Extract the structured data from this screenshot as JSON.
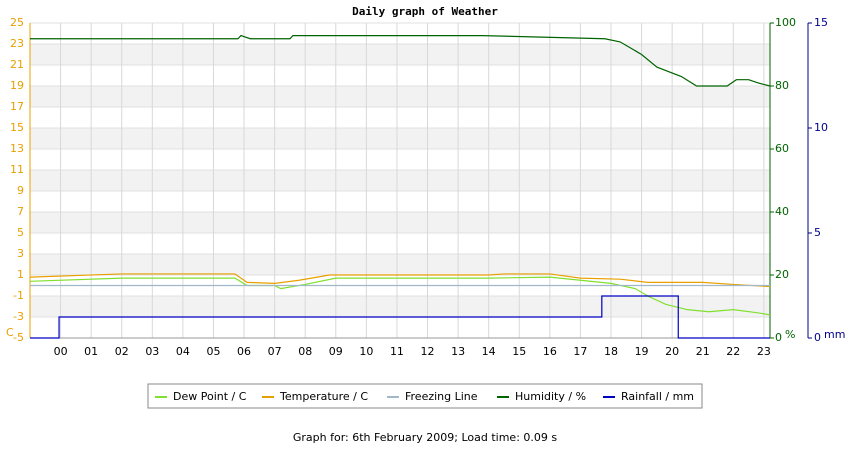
{
  "chart_data": {
    "type": "line",
    "title": "Daily graph of Weather",
    "footer": "Graph for: 6th February 2009; Load time: 0.09 s",
    "ylabel": "C",
    "y2label": "%",
    "y3label": "mm",
    "xlim": [
      -1.0,
      23.2
    ],
    "xticks": [
      {
        "value": 0,
        "label": "00"
      },
      {
        "value": 1,
        "label": "01"
      },
      {
        "value": 2,
        "label": "02"
      },
      {
        "value": 3,
        "label": "03"
      },
      {
        "value": 4,
        "label": "04"
      },
      {
        "value": 5,
        "label": "05"
      },
      {
        "value": 6,
        "label": "06"
      },
      {
        "value": 7,
        "label": "07"
      },
      {
        "value": 8,
        "label": "08"
      },
      {
        "value": 9,
        "label": "09"
      },
      {
        "value": 10,
        "label": "10"
      },
      {
        "value": 11,
        "label": "11"
      },
      {
        "value": 12,
        "label": "12"
      },
      {
        "value": 13,
        "label": "13"
      },
      {
        "value": 14,
        "label": "14"
      },
      {
        "value": 15,
        "label": "15"
      },
      {
        "value": 16,
        "label": "16"
      },
      {
        "value": 17,
        "label": "17"
      },
      {
        "value": 18,
        "label": "18"
      },
      {
        "value": 19,
        "label": "19"
      },
      {
        "value": 20,
        "label": "20"
      },
      {
        "value": 21,
        "label": "21"
      },
      {
        "value": 22,
        "label": "22"
      },
      {
        "value": 23,
        "label": "23"
      }
    ],
    "ylim": [
      -5,
      25
    ],
    "yticks": [
      -5,
      -3,
      -1,
      1,
      3,
      5,
      7,
      9,
      11,
      13,
      15,
      17,
      19,
      21,
      23,
      25
    ],
    "y2lim": [
      0,
      100
    ],
    "y2ticks": [
      0,
      20,
      40,
      60,
      80,
      100
    ],
    "y3lim": [
      0,
      15
    ],
    "y3ticks": [
      0,
      5,
      10,
      15
    ],
    "grid": true,
    "series": [
      {
        "name": "Dew Point / C",
        "color": "#80e030",
        "x": [
          -1.0,
          2,
          5.7,
          6.1,
          7.0,
          7.2,
          8.0,
          9.0,
          14.0,
          16.0,
          17.0,
          18.0,
          18.8,
          19.2,
          19.8,
          20.5,
          21.2,
          22.0,
          22.8,
          23.2
        ],
        "values": [
          0.4,
          0.7,
          0.7,
          0.0,
          0.0,
          -0.3,
          0.1,
          0.7,
          0.7,
          0.8,
          0.5,
          0.2,
          -0.3,
          -1.0,
          -1.8,
          -2.3,
          -2.5,
          -2.3,
          -2.6,
          -2.8
        ]
      },
      {
        "name": "Temperature / C",
        "color": "#e8a000",
        "x": [
          -1.0,
          2,
          5.7,
          6.1,
          7.0,
          7.8,
          8.8,
          14.0,
          14.5,
          16.0,
          17.0,
          18.3,
          19.2,
          21.0,
          22.0,
          23.2
        ],
        "values": [
          0.8,
          1.1,
          1.1,
          0.3,
          0.2,
          0.5,
          1.0,
          1.0,
          1.1,
          1.1,
          0.7,
          0.6,
          0.3,
          0.3,
          0.1,
          -0.1
        ]
      },
      {
        "name": "Freezing Line",
        "color": "#a0b8c8",
        "x": [
          -1.0,
          23.2
        ],
        "values": [
          0,
          0
        ]
      },
      {
        "name": "Humidity / %",
        "color": "#006400",
        "axis": "y2",
        "x": [
          -1.0,
          5.8,
          5.9,
          6.2,
          7.5,
          7.6,
          13.8,
          17.8,
          18.3,
          19.0,
          19.5,
          20.3,
          20.8,
          21.8,
          22.1,
          22.5,
          22.8,
          23.2
        ],
        "values": [
          95,
          95,
          96,
          95,
          95,
          96,
          96,
          95,
          94,
          90,
          86,
          83,
          80,
          80,
          82,
          82,
          81,
          80
        ]
      },
      {
        "name": "Rainfall / mm",
        "color": "#0000c0",
        "axis": "y3",
        "x": [
          -1.0,
          -0.05,
          -0.05,
          17.7,
          17.7,
          20.2,
          20.2,
          23.2
        ],
        "values": [
          0,
          0,
          1.0,
          1.0,
          2.0,
          2.0,
          0,
          0
        ]
      }
    ]
  }
}
